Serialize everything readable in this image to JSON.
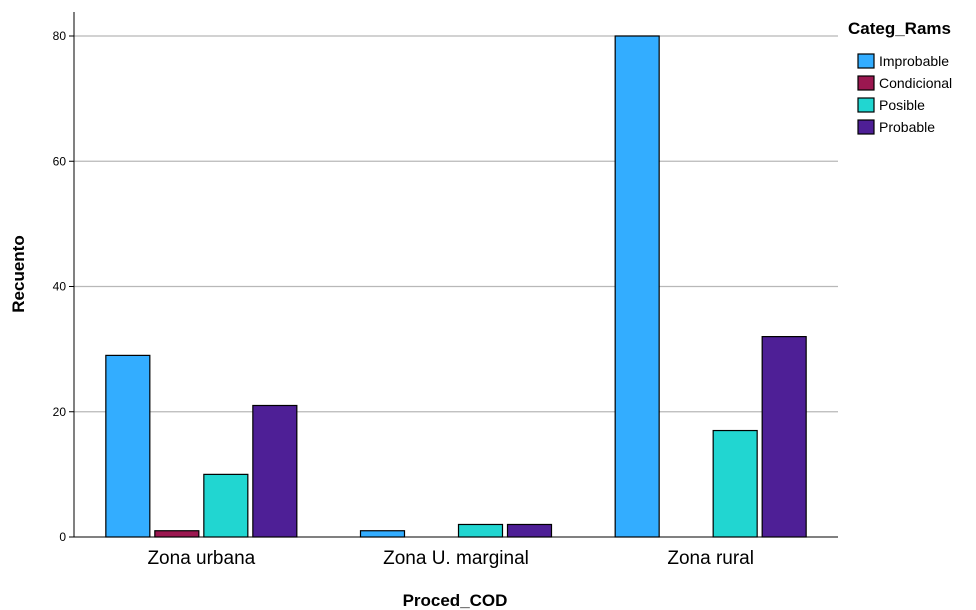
{
  "chart_data": {
    "type": "bar",
    "xlabel": "Proced_COD",
    "ylabel": "Recuento",
    "ylim": [
      0,
      80
    ],
    "yticks": [
      0,
      20,
      40,
      60,
      80
    ],
    "grid": true,
    "legend_position": "top-right",
    "legend_title": "Categ_Rams",
    "categories": [
      "Zona urbana",
      "Zona U. marginal",
      "Zona rural"
    ],
    "series": [
      {
        "name": "Improbable",
        "color": "#33adff",
        "values": [
          29,
          1,
          80
        ]
      },
      {
        "name": "Condicional",
        "color": "#9b1750",
        "values": [
          1,
          0,
          0
        ]
      },
      {
        "name": "Posible",
        "color": "#21d6d1",
        "values": [
          10,
          2,
          17
        ]
      },
      {
        "name": "Probable",
        "color": "#4e1f96",
        "values": [
          21,
          2,
          32
        ]
      }
    ]
  }
}
